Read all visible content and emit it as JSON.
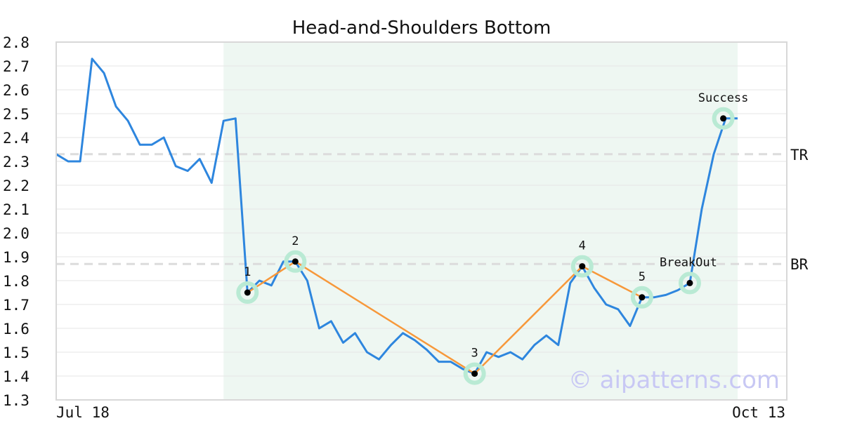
{
  "chart_data": {
    "type": "line",
    "title": "Head-and-Shoulders Bottom",
    "xlabel": "",
    "ylabel": "",
    "ylim": [
      1.3,
      2.8
    ],
    "yticks": [
      "1.3",
      "1.4",
      "1.5",
      "1.6",
      "1.7",
      "1.8",
      "1.9",
      "2.0",
      "2.1",
      "2.2",
      "2.3",
      "2.4",
      "2.5",
      "2.6",
      "2.7",
      "2.8"
    ],
    "x_tick_labels": [
      "Jul 18",
      "Oct 13"
    ],
    "grid": true,
    "series": [
      {
        "color": "#2e86de",
        "values": [
          2.33,
          2.3,
          2.3,
          2.73,
          2.67,
          2.53,
          2.47,
          2.37,
          2.37,
          2.4,
          2.28,
          2.26,
          2.31,
          2.21,
          2.47,
          2.48,
          1.75,
          1.8,
          1.78,
          1.88,
          1.88,
          1.8,
          1.6,
          1.63,
          1.54,
          1.58,
          1.5,
          1.47,
          1.53,
          1.58,
          1.55,
          1.51,
          1.46,
          1.46,
          1.43,
          1.41,
          1.5,
          1.48,
          1.5,
          1.47,
          1.53,
          1.57,
          1.53,
          1.79,
          1.86,
          1.77,
          1.7,
          1.68,
          1.61,
          1.73,
          1.73,
          1.74,
          1.76,
          1.79,
          2.1,
          2.33,
          2.48,
          2.48
        ]
      }
    ],
    "pattern": {
      "color": "#f7983a",
      "marker_ring_color": "#b9ead4",
      "points": [
        {
          "index": 16,
          "value": 1.75,
          "label": "1"
        },
        {
          "index": 20,
          "value": 1.88,
          "label": "2"
        },
        {
          "index": 35,
          "value": 1.41,
          "label": "3"
        },
        {
          "index": 44,
          "value": 1.86,
          "label": "4"
        },
        {
          "index": 49,
          "value": 1.73,
          "label": "5"
        }
      ],
      "extra_points": [
        {
          "index": 53,
          "value": 1.79,
          "label": "BreakOut"
        },
        {
          "index": 55.8,
          "value": 2.48,
          "label": "Success"
        }
      ],
      "shaded_from_index": 14,
      "shaded_to_index": 57,
      "shade_color": "#eef7f2"
    },
    "reference_lines": [
      {
        "label": "TR",
        "value": 2.33
      },
      {
        "label": "BR",
        "value": 1.87
      }
    ],
    "watermark": "© aipatterns.com"
  }
}
